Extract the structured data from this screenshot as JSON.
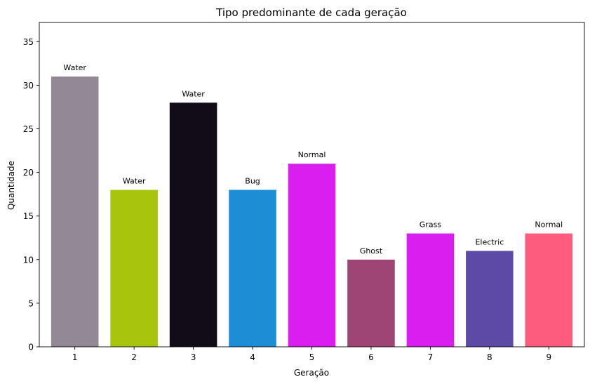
{
  "chart_data": {
    "type": "bar",
    "title": "Tipo predominante de cada geração",
    "xlabel": "Geração",
    "ylabel": "Quantidade",
    "categories": [
      "1",
      "2",
      "3",
      "4",
      "5",
      "6",
      "7",
      "8",
      "9"
    ],
    "values": [
      31,
      18,
      28,
      18,
      21,
      10,
      13,
      11,
      13
    ],
    "bar_labels": [
      "Water",
      "Water",
      "Water",
      "Bug",
      "Normal",
      "Ghost",
      "Grass",
      "Electric",
      "Normal"
    ],
    "colors": [
      "#928896",
      "#a8c40c",
      "#110c18",
      "#1d8ed6",
      "#da1ef0",
      "#9f4576",
      "#da1ef0",
      "#5c4aa6",
      "#fd5c7e"
    ],
    "ylim": [
      0,
      37.2
    ],
    "yticks": [
      0,
      5,
      10,
      15,
      20,
      25,
      30,
      35
    ],
    "grid": false,
    "legend": "none"
  }
}
